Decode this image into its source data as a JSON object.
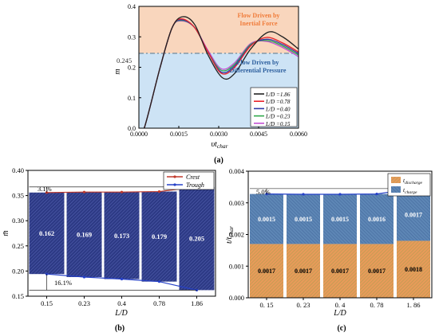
{
  "colors": {
    "inertial_zone": "#f9d6bd",
    "pressure_zone": "#cde3f5",
    "inertial_text": "#f07c3a",
    "pressure_text": "#2d5f9e",
    "dash_line": "#6f8a9e",
    "bar_navy": "#2d3a85",
    "bar_orange": "#e89a5a",
    "bar_blue": "#5d86b5",
    "crest": "#c0392b",
    "trough": "#2540c8",
    "l186": "#222222",
    "l078": "#e8222a",
    "l040": "#2f3aa8",
    "l023": "#2fa84a",
    "l015": "#c34fd4"
  },
  "panels": {
    "a": {
      "caption": "(a)",
      "threshold_label": "0.245",
      "inertial_label_1": "Flow Driven by",
      "inertial_label_2": "Inertial Force",
      "pressure_label_1": "Flow Driven by",
      "pressure_label_2": "Differential Pressure"
    },
    "b": {
      "caption": "(b)",
      "diff_top": "3.1%",
      "diff_bottom": "16.1%"
    },
    "c": {
      "caption": "(c)",
      "diff_top": "5.0%"
    }
  },
  "chart_data": [
    {
      "type": "line",
      "panel": "a",
      "xlabel": "υt_char",
      "ylabel": "m",
      "xlim": [
        0,
        0.006
      ],
      "ylim": [
        0,
        0.4
      ],
      "xticks": [
        "0.0000",
        "0.0015",
        "0.0030",
        "0.0045",
        "0.0060"
      ],
      "yticks": [
        "0.0",
        "0.1",
        "0.2",
        "0.3",
        "0.4"
      ],
      "threshold": 0.245,
      "series": [
        {
          "name": "L/D =1.86",
          "color": "#222222",
          "points": [
            [
              0,
              0
            ],
            [
              0.0002,
              0
            ],
            [
              0.0008,
              0.2
            ],
            [
              0.00125,
              0.33
            ],
            [
              0.00165,
              0.366
            ],
            [
              0.0021,
              0.34
            ],
            [
              0.0026,
              0.24
            ],
            [
              0.00315,
              0.165
            ],
            [
              0.0036,
              0.18
            ],
            [
              0.0042,
              0.26
            ],
            [
              0.00485,
              0.315
            ],
            [
              0.0054,
              0.3
            ],
            [
              0.006,
              0.26
            ]
          ]
        },
        {
          "name": "L/D =0.78",
          "color": "#e8222a",
          "points": [
            [
              0,
              0
            ],
            [
              0.0002,
              0
            ],
            [
              0.0008,
              0.2
            ],
            [
              0.00125,
              0.33
            ],
            [
              0.0016,
              0.359
            ],
            [
              0.0021,
              0.33
            ],
            [
              0.0026,
              0.25
            ],
            [
              0.0031,
              0.18
            ],
            [
              0.0036,
              0.2
            ],
            [
              0.0042,
              0.27
            ],
            [
              0.0048,
              0.298
            ],
            [
              0.0054,
              0.28
            ],
            [
              0.006,
              0.25
            ]
          ]
        },
        {
          "name": "L/D =0.40",
          "color": "#2f3aa8",
          "points": [
            [
              0,
              0
            ],
            [
              0.0002,
              0
            ],
            [
              0.0008,
              0.2
            ],
            [
              0.00125,
              0.33
            ],
            [
              0.0016,
              0.356
            ],
            [
              0.0021,
              0.33
            ],
            [
              0.0026,
              0.25
            ],
            [
              0.0031,
              0.184
            ],
            [
              0.0036,
              0.205
            ],
            [
              0.0042,
              0.272
            ],
            [
              0.0048,
              0.292
            ],
            [
              0.0054,
              0.275
            ],
            [
              0.006,
              0.245
            ]
          ]
        },
        {
          "name": "L/D =0.23",
          "color": "#2fa84a",
          "points": [
            [
              0,
              0
            ],
            [
              0.0002,
              0
            ],
            [
              0.0008,
              0.2
            ],
            [
              0.00125,
              0.33
            ],
            [
              0.0016,
              0.354
            ],
            [
              0.0021,
              0.33
            ],
            [
              0.0026,
              0.25
            ],
            [
              0.0031,
              0.19
            ],
            [
              0.0036,
              0.21
            ],
            [
              0.0042,
              0.275
            ],
            [
              0.0048,
              0.288
            ],
            [
              0.0054,
              0.27
            ],
            [
              0.006,
              0.24
            ]
          ]
        },
        {
          "name": "L/D =0.15",
          "color": "#c34fd4",
          "points": [
            [
              0,
              0
            ],
            [
              0.0002,
              0
            ],
            [
              0.0008,
              0.2
            ],
            [
              0.00125,
              0.33
            ],
            [
              0.0016,
              0.352
            ],
            [
              0.0021,
              0.33
            ],
            [
              0.0026,
              0.255
            ],
            [
              0.0031,
              0.195
            ],
            [
              0.0036,
              0.215
            ],
            [
              0.0042,
              0.278
            ],
            [
              0.0048,
              0.285
            ],
            [
              0.0054,
              0.265
            ],
            [
              0.006,
              0.235
            ]
          ]
        }
      ]
    },
    {
      "type": "bar",
      "panel": "b",
      "xlabel": "L/D",
      "ylabel": "m̄",
      "ylim": [
        0.15,
        0.4
      ],
      "yticks": [
        "0.15",
        "0.20",
        "0.25",
        "0.30",
        "0.35",
        "0.40"
      ],
      "categories": [
        "0.15",
        "0.23",
        "0.4",
        "0.78",
        "1.86"
      ],
      "bar_labels": [
        "0.162",
        "0.169",
        "0.173",
        "0.179",
        "0.205"
      ],
      "crest": [
        0.356,
        0.357,
        0.357,
        0.358,
        0.367
      ],
      "trough": [
        0.194,
        0.188,
        0.184,
        0.179,
        0.162
      ],
      "legend": [
        "Crest",
        "Trough"
      ]
    },
    {
      "type": "bar",
      "panel": "c",
      "xlabel": "L/D",
      "ylabel": "t/t_char",
      "ylim": [
        0,
        0.004
      ],
      "yticks": [
        "0.000",
        "0.001",
        "0.002",
        "0.003",
        "0.004"
      ],
      "categories": [
        "0. 15",
        "0. 23",
        "0. 4",
        "0. 78",
        "1. 86"
      ],
      "series": [
        {
          "name": "t_discharge",
          "values": [
            0.0017,
            0.0017,
            0.0017,
            0.0017,
            0.0018
          ],
          "labels": [
            "0.0017",
            "0.0017",
            "0.0017",
            "0.0017",
            "0.0018"
          ]
        },
        {
          "name": "t_charge",
          "values": [
            0.0015,
            0.0015,
            0.0015,
            0.0016,
            0.0017
          ],
          "labels": [
            "0.0015",
            "0.0015",
            "0.0015",
            "0.0016",
            "0.0017"
          ]
        }
      ],
      "totals": [
        0.00328,
        0.00327,
        0.00327,
        0.00328,
        0.00345
      ]
    }
  ]
}
